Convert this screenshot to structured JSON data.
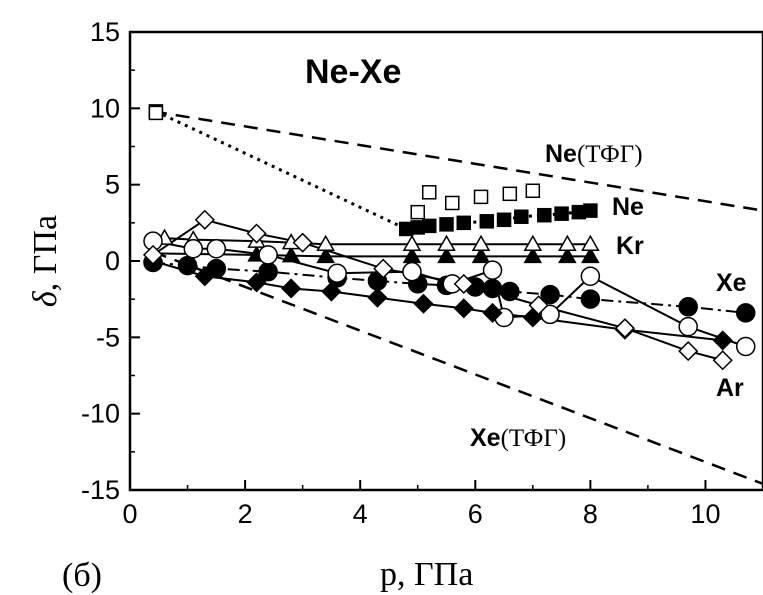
{
  "chart_data": {
    "type": "scatter",
    "title": "Ne-Xe",
    "panel_label": "(б)",
    "xlabel": "p, ГПа",
    "ylabel_symbol": "δ",
    "ylabel_unit": ", ГПа",
    "xlim": [
      0,
      11
    ],
    "ylim": [
      -15,
      15
    ],
    "xticks": [
      0,
      2,
      4,
      6,
      8,
      10
    ],
    "yticks": [
      -15,
      -10,
      -5,
      0,
      5,
      10,
      15
    ],
    "grid": false,
    "curves": [
      {
        "name": "Ne",
        "name_suffix": "(ТФГ)",
        "style": "dashed",
        "x": [
          0.4,
          11
        ],
        "y": [
          9.8,
          3.3
        ]
      },
      {
        "name": "Xe",
        "name_suffix": "(ТФГ)",
        "style": "dashed",
        "x": [
          0.4,
          11
        ],
        "y": [
          0.6,
          -14.6
        ]
      }
    ],
    "series": [
      {
        "name": "Ne",
        "label": "Ne",
        "marker": "square",
        "fill": "filled",
        "line": "dotted",
        "x": [
          0.45,
          4.8,
          5.0,
          5.2,
          5.5,
          5.8,
          6.2,
          6.5,
          6.8,
          7.2,
          7.5,
          7.8,
          8.0
        ],
        "y": [
          9.8,
          2.1,
          2.2,
          2.3,
          2.4,
          2.5,
          2.6,
          2.7,
          2.9,
          3.0,
          3.1,
          3.2,
          3.3
        ]
      },
      {
        "name": "Ne-open",
        "marker": "square",
        "fill": "open",
        "line": "none",
        "x": [
          0.45,
          5.0,
          5.2,
          5.6,
          6.1,
          6.6,
          7.0
        ],
        "y": [
          9.7,
          3.2,
          4.5,
          3.8,
          4.2,
          4.4,
          4.6
        ]
      },
      {
        "name": "Kr",
        "label": "Kr",
        "marker": "triangle",
        "fill": "filled",
        "line": "solid",
        "x": [
          0.4,
          2.2,
          2.8,
          3.4,
          4.9,
          5.5,
          6.1,
          7.0,
          7.6,
          8.0
        ],
        "y": [
          0.5,
          0.4,
          0.35,
          0.3,
          0.3,
          0.3,
          0.3,
          0.3,
          0.3,
          0.3
        ]
      },
      {
        "name": "Kr-open",
        "marker": "triangle",
        "fill": "open",
        "line": "solid",
        "x": [
          0.6,
          1.1,
          2.2,
          2.8,
          3.4,
          4.9,
          5.5,
          6.1,
          7.0,
          7.6,
          8.0
        ],
        "y": [
          1.5,
          1.4,
          1.3,
          1.2,
          1.1,
          1.1,
          1.1,
          1.1,
          1.1,
          1.1,
          1.1
        ]
      },
      {
        "name": "Xe",
        "label": "Xe",
        "marker": "circle",
        "fill": "filled",
        "line": "dashdot",
        "x": [
          0.4,
          1.0,
          1.5,
          2.4,
          3.6,
          4.3,
          5.0,
          5.5,
          6.0,
          6.3,
          6.6,
          7.3,
          8.0,
          9.7,
          10.7
        ],
        "y": [
          -0.1,
          -0.3,
          -0.5,
          -0.7,
          -1.1,
          -1.3,
          -1.5,
          -1.6,
          -1.7,
          -1.8,
          -2.0,
          -2.2,
          -2.5,
          -3.0,
          -3.4
        ]
      },
      {
        "name": "Xe-open",
        "marker": "circle",
        "fill": "open",
        "line": "solid",
        "x": [
          0.4,
          1.1,
          1.5,
          2.4,
          3.6,
          4.9,
          5.6,
          6.3,
          6.5,
          7.3,
          8.0,
          9.7,
          10.7
        ],
        "y": [
          1.3,
          0.8,
          0.8,
          0.4,
          -0.8,
          -0.7,
          -1.5,
          -0.6,
          -3.7,
          -3.5,
          -1.0,
          -4.3,
          -5.6
        ]
      },
      {
        "name": "Ar",
        "label": "Ar",
        "marker": "diamond",
        "fill": "filled",
        "line": "solid",
        "x": [
          0.4,
          1.3,
          2.2,
          2.8,
          3.5,
          4.3,
          5.1,
          5.8,
          6.3,
          7.0,
          8.6,
          10.3
        ],
        "y": [
          0.0,
          -1.0,
          -1.4,
          -1.8,
          -2.0,
          -2.4,
          -2.8,
          -3.1,
          -3.4,
          -3.7,
          -4.5,
          -5.2
        ]
      },
      {
        "name": "Ar-open",
        "marker": "diamond",
        "fill": "open",
        "line": "solid",
        "x": [
          0.4,
          1.3,
          2.2,
          3.0,
          4.4,
          5.8,
          7.1,
          8.6,
          9.7,
          10.3
        ],
        "y": [
          0.4,
          2.7,
          1.8,
          1.2,
          -0.5,
          -1.5,
          -2.9,
          -4.4,
          -5.9,
          -6.5
        ]
      }
    ]
  }
}
